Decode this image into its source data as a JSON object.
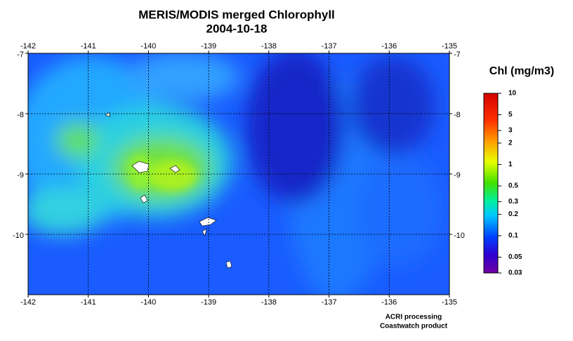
{
  "title": "MERIS/MODIS merged Chlorophyll",
  "date": "2004-10-18",
  "map": {
    "xlim": [
      -142,
      -135
    ],
    "ylim": [
      -11,
      -7
    ],
    "xticks": [
      -142,
      -141,
      -140,
      -139,
      -138,
      -137,
      -136,
      -135
    ],
    "yticks": [
      -7,
      -8,
      -9,
      -10
    ],
    "grid": true
  },
  "colorbar": {
    "title": "Chl (mg/m3)",
    "scale": "log",
    "lim": [
      0.03,
      10
    ],
    "ticks": [
      10,
      5,
      3,
      2,
      1,
      0.5,
      0.3,
      0.2,
      0.1,
      0.05,
      0.03
    ]
  },
  "credits": [
    "ACRI processing",
    "Coastwatch product"
  ]
}
